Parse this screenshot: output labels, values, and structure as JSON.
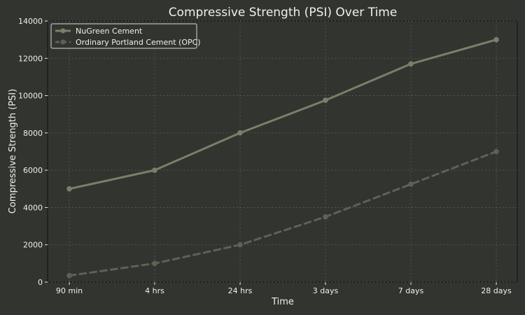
{
  "chart_data": {
    "type": "line",
    "title": "Compressive Strength (PSI) Over Time",
    "xlabel": "Time",
    "ylabel": "Compressive Strength (PSI)",
    "categories": [
      "90 min",
      "4 hrs",
      "24 hrs",
      "3 days",
      "7 days",
      "28 days"
    ],
    "ylim": [
      0,
      14000
    ],
    "yticks": [
      0,
      2000,
      4000,
      6000,
      8000,
      10000,
      12000,
      14000
    ],
    "grid": true,
    "legend_position": "top-left",
    "background_color": "#32342f",
    "series": [
      {
        "name": "NuGreen Cement",
        "values": [
          5000,
          6000,
          8000,
          9750,
          11700,
          13000
        ],
        "color": "#7b7f69",
        "line_style": "solid",
        "marker": "circle"
      },
      {
        "name": "Ordinary Portland Cement (OPC)",
        "values": [
          350,
          1000,
          2000,
          3500,
          5250,
          7000
        ],
        "color": "#5e6154",
        "line_style": "dashed",
        "marker": "circle"
      }
    ]
  }
}
